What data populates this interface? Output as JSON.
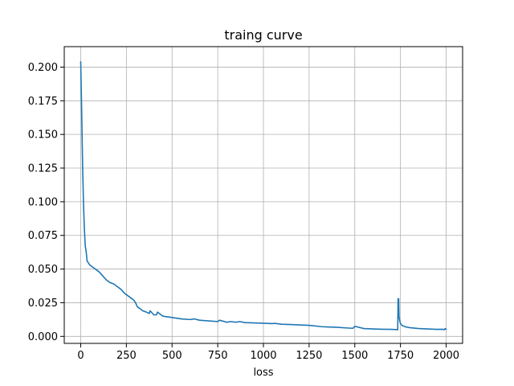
{
  "chart_data": {
    "type": "line",
    "title": "traing curve",
    "xlabel": "loss",
    "ylabel": "",
    "xlim": [
      -90,
      2090
    ],
    "ylim": [
      -0.0052,
      0.2152
    ],
    "xticks": [
      0,
      250,
      500,
      750,
      1000,
      1250,
      1500,
      1750,
      2000
    ],
    "yticks": [
      0.0,
      0.025,
      0.05,
      0.075,
      0.1,
      0.125,
      0.15,
      0.175,
      0.2
    ],
    "xtick_labels": [
      "0",
      "250",
      "500",
      "750",
      "1000",
      "1250",
      "1500",
      "1750",
      "2000"
    ],
    "ytick_labels": [
      "0.000",
      "0.025",
      "0.050",
      "0.075",
      "0.100",
      "0.125",
      "0.150",
      "0.175",
      "0.200"
    ],
    "grid": true,
    "legend": "none",
    "series": [
      {
        "color": "#1f77b4",
        "x": [
          0,
          5,
          10,
          15,
          20,
          25,
          30,
          35,
          40,
          50,
          60,
          80,
          100,
          120,
          140,
          160,
          180,
          200,
          220,
          240,
          260,
          280,
          290,
          300,
          310,
          320,
          340,
          360,
          375,
          380,
          400,
          415,
          420,
          450,
          500,
          550,
          600,
          620,
          650,
          700,
          750,
          760,
          800,
          820,
          850,
          870,
          900,
          950,
          1000,
          1050,
          1060,
          1100,
          1150,
          1200,
          1250,
          1300,
          1320,
          1350,
          1400,
          1450,
          1490,
          1500,
          1550,
          1600,
          1650,
          1700,
          1735,
          1737,
          1740,
          1742,
          1745,
          1750,
          1760,
          1780,
          1800,
          1850,
          1900,
          1950,
          1980,
          1990,
          1995,
          2000
        ],
        "y": [
          0.204,
          0.17,
          0.13,
          0.1,
          0.08,
          0.067,
          0.063,
          0.056,
          0.055,
          0.053,
          0.052,
          0.05,
          0.048,
          0.045,
          0.042,
          0.04,
          0.039,
          0.037,
          0.035,
          0.032,
          0.03,
          0.028,
          0.027,
          0.025,
          0.022,
          0.021,
          0.019,
          0.018,
          0.017,
          0.019,
          0.016,
          0.016,
          0.018,
          0.015,
          0.014,
          0.013,
          0.0125,
          0.013,
          0.012,
          0.0115,
          0.011,
          0.012,
          0.0105,
          0.011,
          0.0105,
          0.011,
          0.0102,
          0.01,
          0.0098,
          0.0095,
          0.0097,
          0.009,
          0.0088,
          0.0085,
          0.0082,
          0.0075,
          0.0072,
          0.007,
          0.0068,
          0.0063,
          0.006,
          0.0075,
          0.0058,
          0.0055,
          0.0053,
          0.0052,
          0.005,
          0.028,
          0.028,
          0.015,
          0.012,
          0.0095,
          0.008,
          0.007,
          0.0065,
          0.0058,
          0.0055,
          0.0052,
          0.0053,
          0.005,
          0.0058,
          0.0052
        ]
      }
    ]
  }
}
